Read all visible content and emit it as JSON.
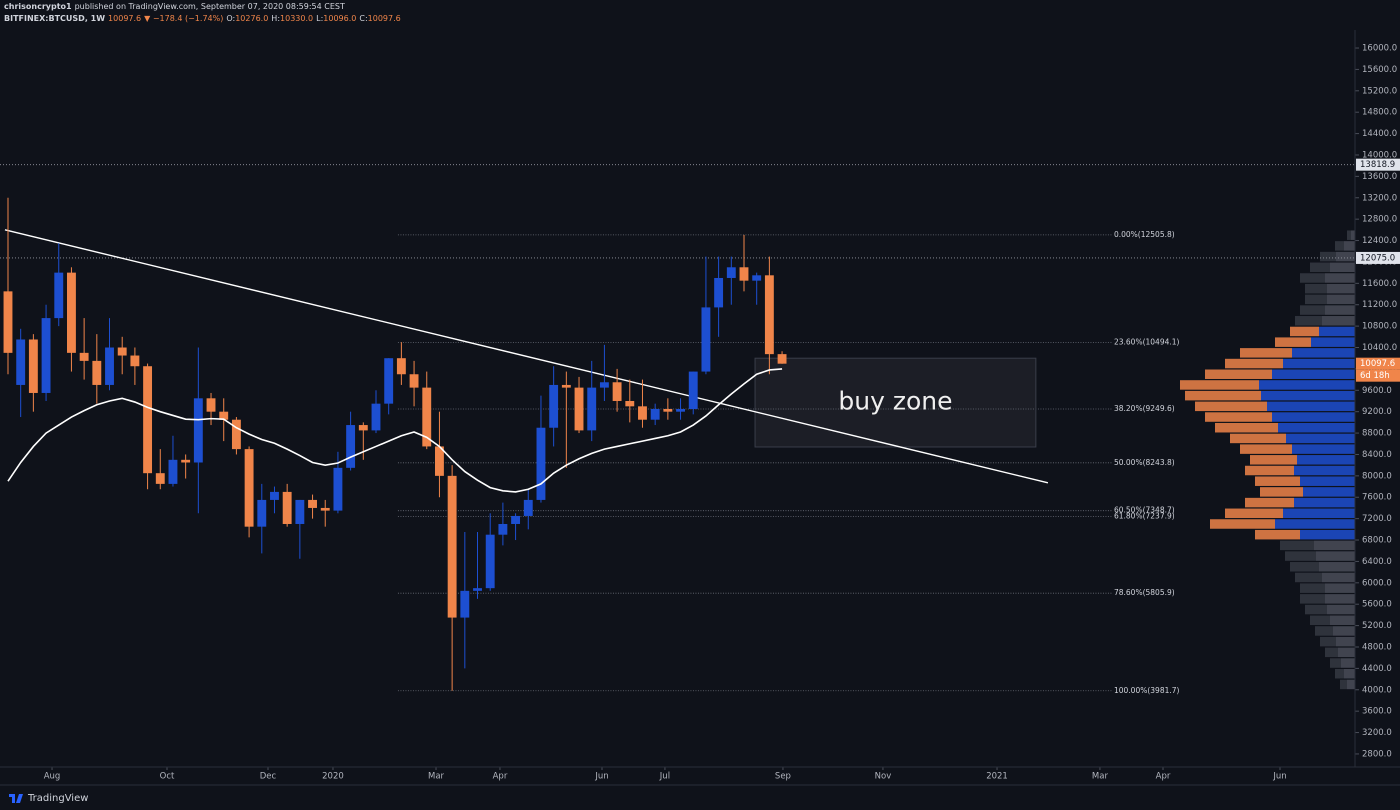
{
  "header": {
    "author": "chrisoncrypto1",
    "published": "published on TradingView.com, September 07, 2020 08:59:54 CEST",
    "symbol": "BITFINEX:BTCUSD, 1W",
    "last": "10097.6",
    "change": "▼ −178.4 (−1.74%)",
    "ohlc": [
      {
        "key": "O:",
        "value": "10276.0"
      },
      {
        "key": "H:",
        "value": "10330.0"
      },
      {
        "key": "L:",
        "value": "10096.0"
      },
      {
        "key": "C:",
        "value": "10097.6"
      }
    ]
  },
  "footer": {
    "brand": "TradingView"
  },
  "chart_data": {
    "type": "candlestick",
    "x": [
      0,
      1,
      2,
      3,
      4,
      5,
      6,
      7,
      8,
      9,
      10,
      11,
      12,
      13,
      14,
      15,
      16,
      17,
      18,
      19,
      20,
      21,
      22,
      23,
      24,
      25,
      26,
      27,
      28,
      29,
      30,
      31,
      32,
      33,
      34,
      35,
      36,
      37,
      38,
      39,
      40,
      41,
      42,
      43,
      44,
      45,
      46,
      47,
      48,
      49,
      50,
      51,
      52,
      53,
      54,
      55,
      56,
      57,
      58,
      59,
      60,
      61
    ],
    "open": [
      11450,
      9700,
      10550,
      9550,
      10950,
      11800,
      10300,
      10150,
      9700,
      10400,
      10250,
      10050,
      8050,
      7850,
      8300,
      8250,
      9450,
      9200,
      9050,
      8500,
      7050,
      7550,
      7700,
      7100,
      7550,
      7400,
      7350,
      8150,
      8950,
      8850,
      9350,
      10200,
      9900,
      9650,
      8550,
      8000,
      5350,
      5850,
      5900,
      6900,
      7100,
      7250,
      7550,
      8900,
      9700,
      9650,
      8850,
      9650,
      9750,
      9400,
      9300,
      9050,
      9250,
      9200,
      9250,
      9950,
      11150,
      11700,
      11900,
      11650,
      11750,
      10276
    ],
    "high": [
      13200,
      10750,
      10650,
      11200,
      12350,
      11900,
      10950,
      10650,
      10950,
      10600,
      10400,
      10100,
      8500,
      8750,
      8400,
      10400,
      9550,
      9450,
      9100,
      8550,
      7850,
      7800,
      7850,
      7550,
      7650,
      7550,
      8450,
      9200,
      9000,
      9600,
      10200,
      10500,
      10150,
      9950,
      9200,
      8200,
      6950,
      6950,
      7300,
      7500,
      7300,
      7750,
      9500,
      10050,
      9950,
      9850,
      10150,
      10450,
      10000,
      9800,
      9800,
      9350,
      9450,
      9450,
      9950,
      12100,
      12100,
      12100,
      12505.8,
      11800,
      12100,
      10330
    ],
    "low": [
      9900,
      9100,
      9200,
      9400,
      10800,
      9950,
      9800,
      9350,
      9600,
      9900,
      9700,
      7750,
      7750,
      7800,
      7950,
      7300,
      8950,
      8650,
      8400,
      6850,
      6550,
      7300,
      7050,
      6450,
      7200,
      7050,
      7300,
      8100,
      8300,
      8800,
      9150,
      9700,
      9300,
      8500,
      7600,
      3981.7,
      4400,
      5700,
      5850,
      6700,
      6800,
      7000,
      7500,
      8550,
      8150,
      8800,
      8650,
      9400,
      9200,
      9000,
      8900,
      8950,
      9050,
      9050,
      9150,
      9900,
      10600,
      11200,
      11450,
      11200,
      9900,
      10096
    ],
    "close": [
      10300,
      10550,
      9550,
      10950,
      11800,
      10300,
      10150,
      9700,
      10400,
      10250,
      10050,
      8050,
      7850,
      8300,
      8250,
      9450,
      9200,
      9050,
      8500,
      7050,
      7550,
      7700,
      7100,
      7550,
      7400,
      7350,
      8150,
      8950,
      8850,
      9350,
      10200,
      9900,
      9650,
      8550,
      8000,
      5350,
      5850,
      5900,
      6900,
      7100,
      7250,
      7550,
      8900,
      9700,
      9650,
      8850,
      9650,
      9750,
      9400,
      9300,
      9050,
      9250,
      9200,
      9250,
      9950,
      11150,
      11700,
      11900,
      11650,
      11750,
      10276,
      10097.6
    ],
    "up_color": "#1d4fd1",
    "down_color": "#f0854a",
    "ma": {
      "color": "#ffffff",
      "values": [
        7900,
        8250,
        8550,
        8800,
        8950,
        9100,
        9220,
        9330,
        9400,
        9450,
        9380,
        9280,
        9200,
        9130,
        9060,
        9050,
        9070,
        9060,
        8900,
        8780,
        8680,
        8610,
        8500,
        8380,
        8250,
        8200,
        8240,
        8350,
        8450,
        8550,
        8650,
        8750,
        8820,
        8720,
        8550,
        8300,
        8080,
        7920,
        7780,
        7720,
        7700,
        7750,
        7850,
        8050,
        8200,
        8320,
        8420,
        8500,
        8550,
        8600,
        8650,
        8700,
        8750,
        8820,
        8950,
        9120,
        9330,
        9530,
        9720,
        9900,
        9980,
        10000
      ]
    },
    "trendline": {
      "color": "#ffffff",
      "x": [
        -0.24,
        81.95
      ],
      "y": [
        12600,
        7870
      ]
    },
    "fib": {
      "color": "#6b6f7a",
      "x": [
        30.73,
        87.0
      ],
      "levels": [
        {
          "value": 12505.8,
          "label": "0.00%(12505.8)"
        },
        {
          "value": 10494.1,
          "label": "23.60%(10494.1)"
        },
        {
          "value": 9249.6,
          "label": "38.20%(9249.6)"
        },
        {
          "value": 8243.8,
          "label": "50.00%(8243.8)"
        },
        {
          "value": 7348.7,
          "label": "60.50%(7348.7)"
        },
        {
          "value": 7237.9,
          "label": "61.80%(7237.9)"
        },
        {
          "value": 5805.9,
          "label": "78.60%(5805.9)"
        },
        {
          "value": 3981.7,
          "label": "100.00%(3981.7)"
        }
      ]
    },
    "price_lines": [
      13818.9,
      {
        "value": 12075,
        "label": "12075.0"
      }
    ],
    "last_price": 10097.6,
    "countdown": "6d 18h",
    "buy_zone": {
      "label": "buy zone",
      "x": [
        58.87,
        81.0
      ],
      "y": [
        8540,
        10200
      ]
    },
    "volume_profile": {
      "bins": [
        4000,
        4200,
        4400,
        4600,
        4800,
        5000,
        5200,
        5400,
        5600,
        5800,
        6000,
        6200,
        6400,
        6600,
        6800,
        7000,
        7200,
        7400,
        7600,
        7800,
        8000,
        8200,
        8400,
        8600,
        8800,
        9000,
        9200,
        9400,
        9600,
        9800,
        10000,
        10200,
        10400,
        10600,
        10800,
        11000,
        11200,
        11400,
        11600,
        11800,
        12000,
        12200,
        12400,
        12600
      ],
      "up": [
        8,
        11,
        14,
        17,
        19,
        22,
        25,
        28,
        30,
        30,
        33,
        36,
        39,
        41,
        55,
        80,
        72,
        61,
        52,
        55,
        61,
        58,
        63,
        69,
        77,
        83,
        88,
        94,
        96,
        83,
        72,
        63,
        44,
        36,
        33,
        30,
        28,
        28,
        30,
        25,
        19,
        11,
        4
      ],
      "down": [
        7,
        9,
        11,
        13,
        16,
        18,
        20,
        22,
        25,
        25,
        27,
        29,
        31,
        34,
        45,
        65,
        58,
        49,
        43,
        45,
        49,
        47,
        52,
        56,
        63,
        67,
        72,
        76,
        79,
        67,
        58,
        52,
        36,
        29,
        27,
        25,
        22,
        22,
        25,
        20,
        16,
        9,
        4
      ],
      "xlim": [
        0,
        200
      ],
      "value_area": [
        6800,
        10800
      ],
      "outside_color": "#4a4e59"
    },
    "xlim": [
      -0.63,
      106.15
    ],
    "xticks": [
      {
        "value": 3.47,
        "label": "Aug"
      },
      {
        "value": 12.53,
        "label": "Oct"
      },
      {
        "value": 20.49,
        "label": "Dec"
      },
      {
        "value": 25.61,
        "label": "2020"
      },
      {
        "value": 33.73,
        "label": "Mar"
      },
      {
        "value": 38.77,
        "label": "Apr"
      },
      {
        "value": 46.81,
        "label": "Jun"
      },
      {
        "value": 51.77,
        "label": "Jul"
      },
      {
        "value": 61.07,
        "label": "Sep"
      },
      {
        "value": 68.95,
        "label": "Nov"
      },
      {
        "value": 77.94,
        "label": "2021"
      },
      {
        "value": 86.05,
        "label": "Mar"
      },
      {
        "value": 91.02,
        "label": "Apr"
      },
      {
        "value": 100.24,
        "label": "Jun"
      }
    ],
    "ylim": [
      2556,
      16337
    ],
    "yticks": [
      {
        "value": 2800,
        "label": "2800.0"
      },
      {
        "value": 3200,
        "label": "3200.0"
      },
      {
        "value": 3600,
        "label": "3600.0"
      },
      {
        "value": 4000,
        "label": "4000.0"
      },
      {
        "value": 4400,
        "label": "4400.0"
      },
      {
        "value": 4800,
        "label": "4800.0"
      },
      {
        "value": 5200,
        "label": "5200.0"
      },
      {
        "value": 5600,
        "label": "5600.0"
      },
      {
        "value": 6000,
        "label": "6000.0"
      },
      {
        "value": 6400,
        "label": "6400.0"
      },
      {
        "value": 6800,
        "label": "6800.0"
      },
      {
        "value": 7200,
        "label": "7200.0"
      },
      {
        "value": 7600,
        "label": "7600.0"
      },
      {
        "value": 8000,
        "label": "8000.0"
      },
      {
        "value": 8400,
        "label": "8400.0"
      },
      {
        "value": 8800,
        "label": "8800.0"
      },
      {
        "value": 9200,
        "label": "9200.0"
      },
      {
        "value": 9600,
        "label": "9600.0"
      },
      {
        "value": 10000,
        "label": "10000.0"
      },
      {
        "value": 10400,
        "label": "10400.0"
      },
      {
        "value": 10800,
        "label": "10800.0"
      },
      {
        "value": 11200,
        "label": "11200.0"
      },
      {
        "value": 11600,
        "label": "11600.0"
      },
      {
        "value": 12000,
        "label": "12000.0"
      },
      {
        "value": 12400,
        "label": "12400.0"
      },
      {
        "value": 12800,
        "label": "12800.0"
      },
      {
        "value": 13200,
        "label": "13200.0"
      },
      {
        "value": 13600,
        "label": "13600.0"
      },
      {
        "value": 14000,
        "label": "14000.0"
      },
      {
        "value": 14400,
        "label": "14400.0"
      },
      {
        "value": 14800,
        "label": "14800.0"
      },
      {
        "value": 15200,
        "label": "15200.0"
      },
      {
        "value": 15600,
        "label": "15600.0"
      },
      {
        "value": 16000,
        "label": "16000.0"
      }
    ],
    "grid": false
  }
}
